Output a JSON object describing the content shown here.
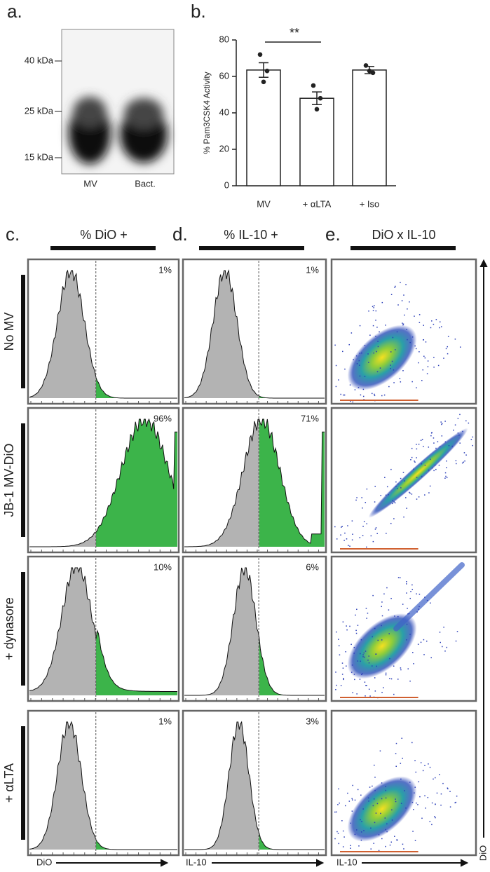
{
  "panel_labels": [
    "a.",
    "b.",
    "c.",
    "d.",
    "e."
  ],
  "blot": {
    "markers": [
      "40 kDa",
      "25 kDa",
      "15 kDa"
    ],
    "lanes": [
      "MV",
      "Bact."
    ]
  },
  "chart_data": {
    "type": "bar",
    "ylabel": "% Pam3CSK4 Activity",
    "annotation": "**",
    "categories": [
      "MV",
      "+ αLTA",
      "+ Iso"
    ],
    "values": [
      63.5,
      48,
      63.5
    ],
    "errors": [
      4,
      3.5,
      2
    ],
    "points": [
      [
        72,
        63,
        57
      ],
      [
        55,
        48,
        42
      ],
      [
        66,
        62,
        63
      ]
    ],
    "color": "#ffffff",
    "ylim": [
      0,
      80
    ],
    "yticks": [
      0,
      20,
      40,
      60,
      80
    ]
  },
  "columns": [
    {
      "header": "% DiO +"
    },
    {
      "header": "% IL-10 +"
    },
    {
      "header": "DiO x IL-10"
    }
  ],
  "rows": [
    {
      "label": "No MV",
      "percents": [
        "1%",
        "1%"
      ]
    },
    {
      "label": "JB-1 MV-DiO",
      "percents": [
        "96%",
        "71%"
      ]
    },
    {
      "label": "+ dynasore",
      "percents": [
        "10%",
        "6%"
      ]
    },
    {
      "label": "+ αLTA",
      "percents": [
        "1%",
        "3%"
      ]
    }
  ],
  "axis_labels": {
    "c": "DiO",
    "d": "IL-10",
    "e_x": "IL-10",
    "e_y": "DiO"
  }
}
